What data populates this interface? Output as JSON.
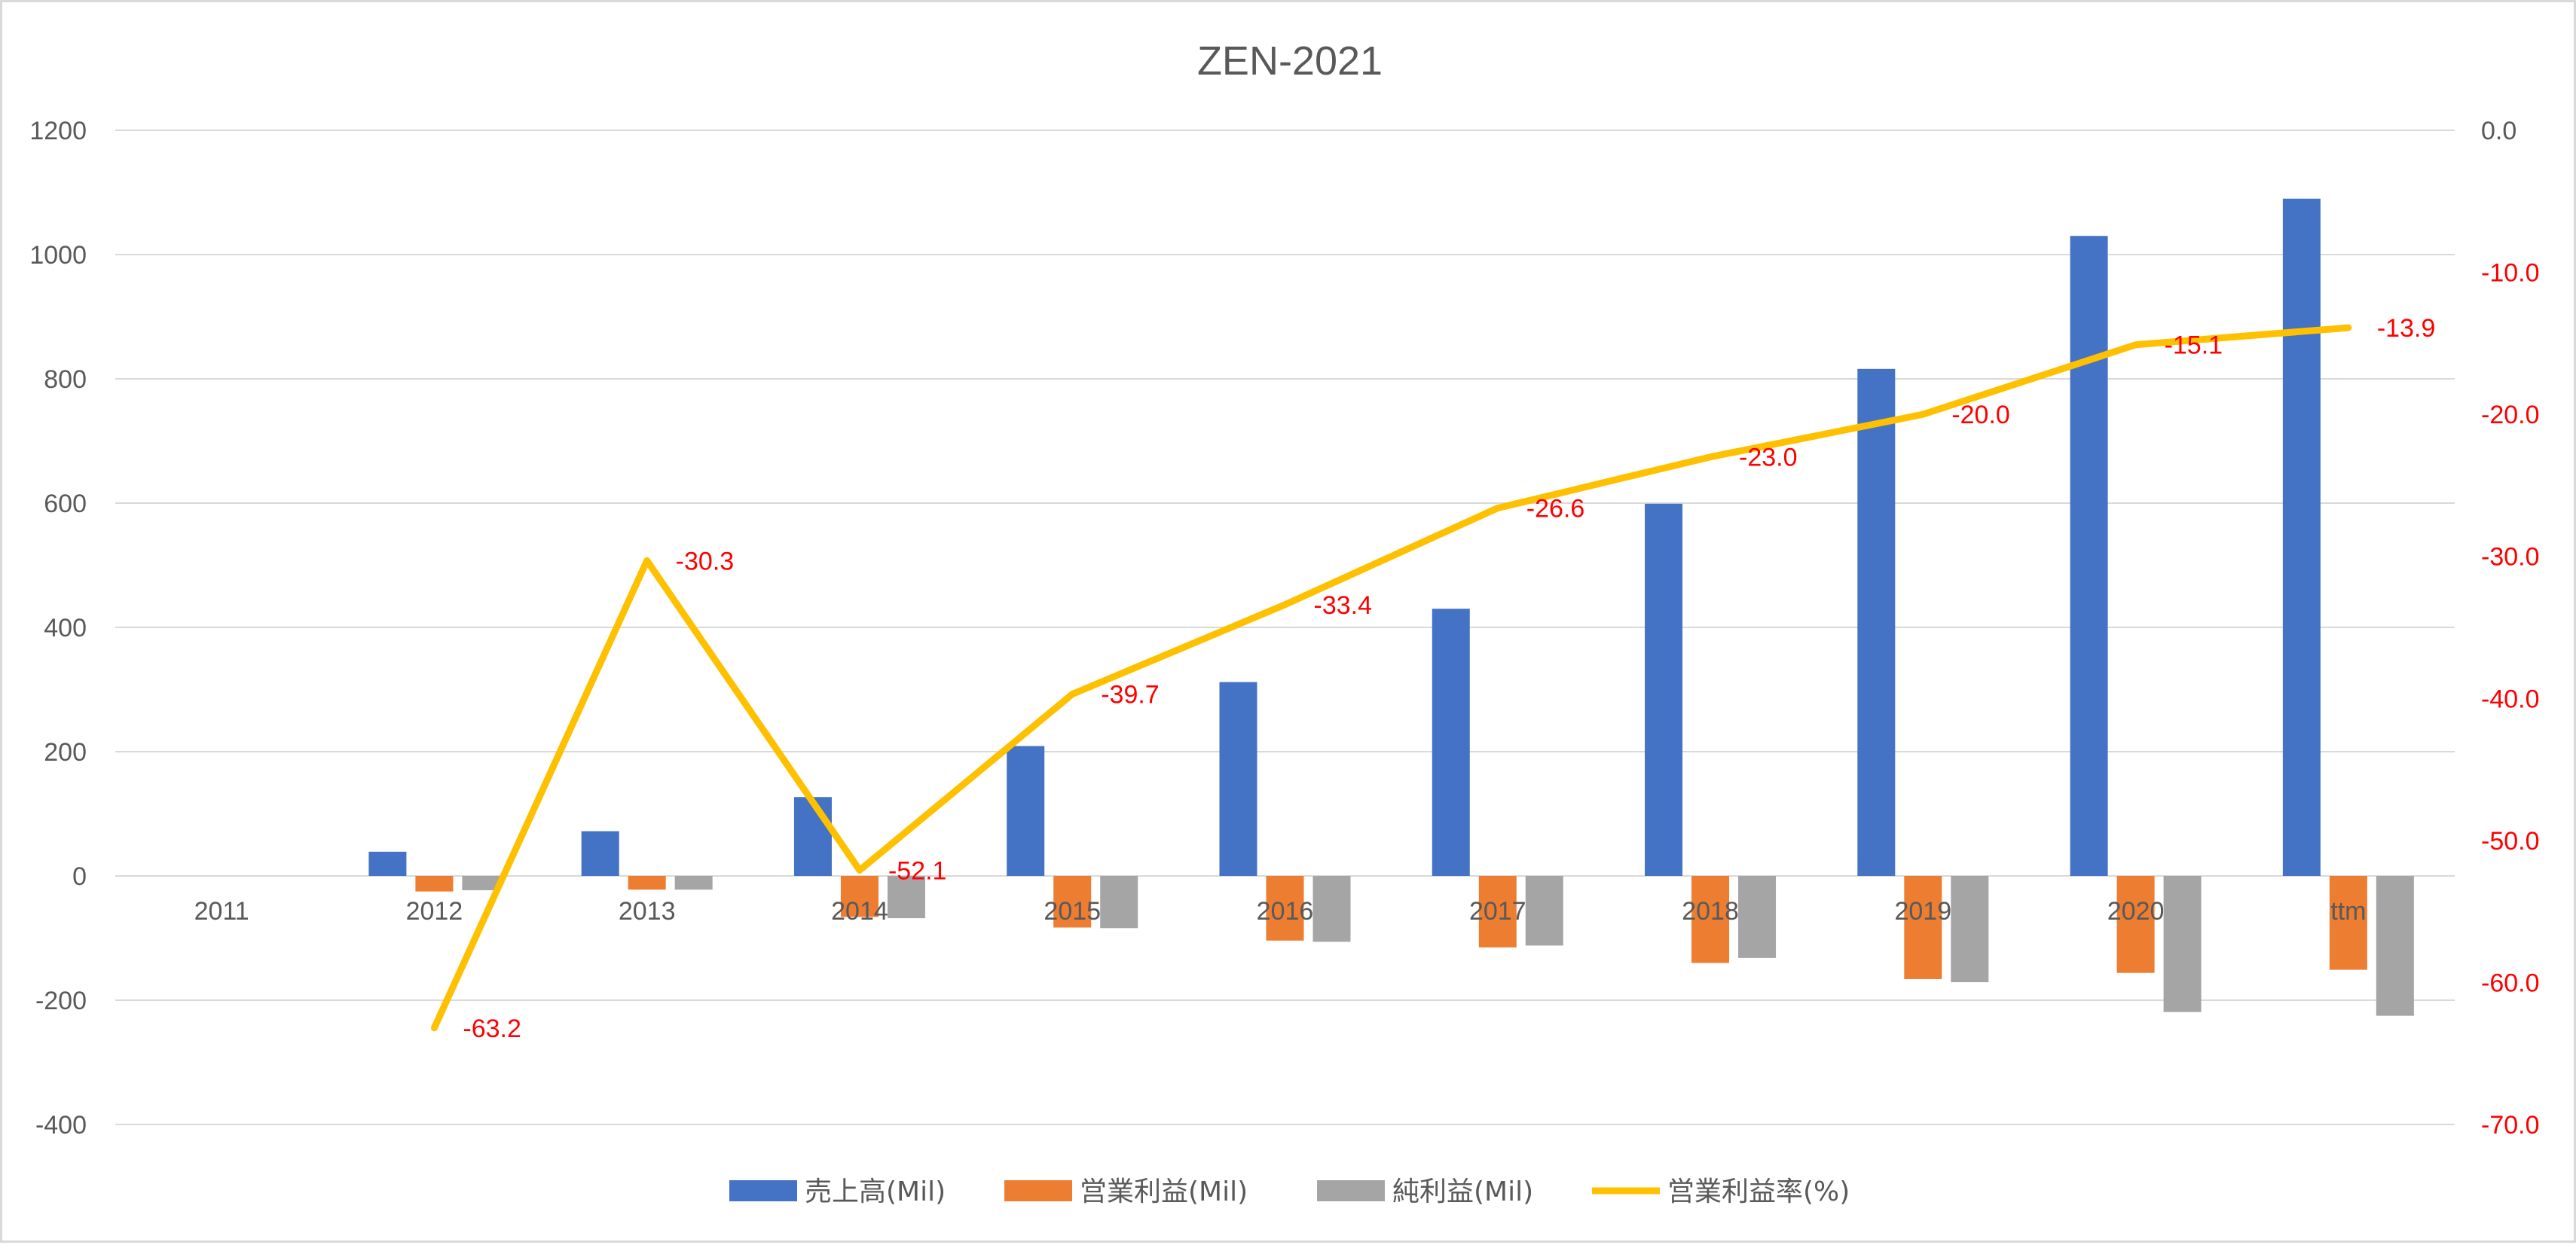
{
  "chart_data": {
    "type": "bar",
    "title": "ZEN-2021",
    "categories": [
      "2011",
      "2012",
      "2013",
      "2014",
      "2015",
      "2016",
      "2017",
      "2018",
      "2019",
      "2020",
      "ttm"
    ],
    "series": [
      {
        "name": "売上高(Mil)",
        "type": "bar",
        "axis": "left",
        "color": "#4472c4",
        "values": [
          0,
          39,
          72,
          127,
          209,
          312,
          430,
          599,
          816,
          1030,
          1090
        ]
      },
      {
        "name": "営業利益(Mil)",
        "type": "bar",
        "axis": "left",
        "color": "#ed7d31",
        "values": [
          0,
          -25,
          -22,
          -66,
          -83,
          -104,
          -115,
          -140,
          -166,
          -156,
          -151
        ]
      },
      {
        "name": "純利益(Mil)",
        "type": "bar",
        "axis": "left",
        "color": "#a5a5a5",
        "values": [
          0,
          -23,
          -22,
          -68,
          -84,
          -106,
          -112,
          -132,
          -171,
          -219,
          -225
        ]
      },
      {
        "name": "営業利益率(%)",
        "type": "line",
        "axis": "right",
        "color": "#ffc000",
        "values": [
          null,
          -63.2,
          -30.3,
          -52.1,
          -39.7,
          -33.4,
          -26.6,
          -23.0,
          -20.0,
          -15.1,
          -13.9
        ],
        "labels": [
          "",
          "-63.2",
          "-30.3",
          "-52.1",
          "-39.7",
          "-33.4",
          "-26.6",
          "-23.0",
          "-20.0",
          "-15.1",
          "-13.9"
        ]
      }
    ],
    "y_left": {
      "min": -400,
      "max": 1200,
      "ticks": [
        "1200",
        "1000",
        "800",
        "600",
        "400",
        "200",
        "0",
        "-200",
        "-400"
      ]
    },
    "y_right": {
      "min": -70,
      "max": 0,
      "ticks": [
        "0.0",
        "-10.0",
        "-20.0",
        "-30.0",
        "-40.0",
        "-50.0",
        "-60.0",
        "-70.0"
      ]
    },
    "grid": true,
    "legend_position": "bottom"
  }
}
